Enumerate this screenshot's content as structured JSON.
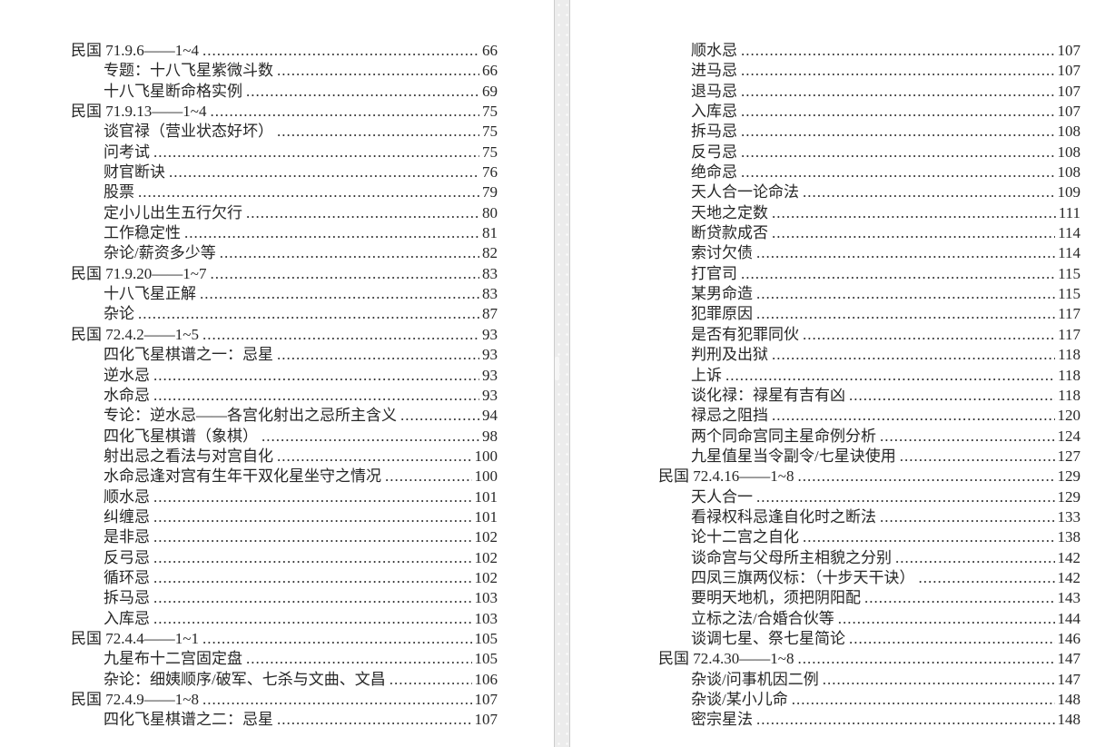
{
  "viewer": {
    "background": "#ffffff",
    "page_color": "#ffffff",
    "gap_color": "#ececec",
    "gap_border_color": "#cccccc",
    "text_color": "#262626"
  },
  "toc_left": {
    "entries": [
      {
        "label": "民国 71.9.6——1~4",
        "page": "66",
        "level": 0
      },
      {
        "label": "专题：十八飞星紫微斗数",
        "page": "66",
        "level": 1
      },
      {
        "label": "十八飞星断命格实例",
        "page": "69",
        "level": 1
      },
      {
        "label": "民国 71.9.13——1~4",
        "page": "75",
        "level": 0
      },
      {
        "label": "谈官禄（营业状态好坏）",
        "page": "75",
        "level": 1
      },
      {
        "label": "问考试",
        "page": "75",
        "level": 1
      },
      {
        "label": "财官断诀",
        "page": "76",
        "level": 1
      },
      {
        "label": "股票",
        "page": "79",
        "level": 1
      },
      {
        "label": "定小儿出生五行欠行",
        "page": "80",
        "level": 1
      },
      {
        "label": "工作稳定性",
        "page": "81",
        "level": 1
      },
      {
        "label": "杂论/薪资多少等",
        "page": "82",
        "level": 1
      },
      {
        "label": "民国 71.9.20——1~7",
        "page": "83",
        "level": 0
      },
      {
        "label": "十八飞星正解",
        "page": "83",
        "level": 1
      },
      {
        "label": "杂论",
        "page": "87",
        "level": 1
      },
      {
        "label": "民国 72.4.2——1~5",
        "page": "93",
        "level": 0
      },
      {
        "label": "四化飞星棋谱之一：忌星",
        "page": "93",
        "level": 1
      },
      {
        "label": "逆水忌",
        "page": "93",
        "level": 1
      },
      {
        "label": "水命忌",
        "page": "93",
        "level": 1
      },
      {
        "label": "专论：逆水忌——各宫化射出之忌所主含义",
        "page": "94",
        "level": 1
      },
      {
        "label": "四化飞星棋谱（象棋）",
        "page": "98",
        "level": 1
      },
      {
        "label": "射出忌之看法与对宫自化",
        "page": "100",
        "level": 1
      },
      {
        "label": "水命忌逢对宫有生年干双化星坐守之情况",
        "page": "100",
        "level": 1
      },
      {
        "label": "顺水忌",
        "page": "101",
        "level": 1
      },
      {
        "label": "纠缠忌",
        "page": "101",
        "level": 1
      },
      {
        "label": "是非忌",
        "page": "102",
        "level": 1
      },
      {
        "label": "反弓忌",
        "page": "102",
        "level": 1
      },
      {
        "label": "循环忌",
        "page": "102",
        "level": 1
      },
      {
        "label": "拆马忌",
        "page": "103",
        "level": 1
      },
      {
        "label": "入库忌",
        "page": "103",
        "level": 1
      },
      {
        "label": "民国 72.4.4——1~1",
        "page": "105",
        "level": 0
      },
      {
        "label": "九星布十二宫固定盘",
        "page": "105",
        "level": 1
      },
      {
        "label": "杂论：细姨顺序/破军、七杀与文曲、文昌",
        "page": "106",
        "level": 1
      },
      {
        "label": "民国 72.4.9——1~8",
        "page": "107",
        "level": 0
      },
      {
        "label": "四化飞星棋谱之二：忌星",
        "page": "107",
        "level": 1
      }
    ]
  },
  "toc_right": {
    "entries": [
      {
        "label": "顺水忌",
        "page": "107",
        "level": 1
      },
      {
        "label": "进马忌",
        "page": "107",
        "level": 1
      },
      {
        "label": "退马忌",
        "page": "107",
        "level": 1
      },
      {
        "label": "入库忌",
        "page": "107",
        "level": 1
      },
      {
        "label": "拆马忌",
        "page": "108",
        "level": 1
      },
      {
        "label": "反弓忌",
        "page": "108",
        "level": 1
      },
      {
        "label": "绝命忌",
        "page": "108",
        "level": 1
      },
      {
        "label": "天人合一论命法",
        "page": "109",
        "level": 1
      },
      {
        "label": "天地之定数",
        "page": "111",
        "level": 1
      },
      {
        "label": "断贷款成否",
        "page": "114",
        "level": 1
      },
      {
        "label": "索讨欠债",
        "page": "114",
        "level": 1
      },
      {
        "label": "打官司",
        "page": "115",
        "level": 1
      },
      {
        "label": "某男命造",
        "page": "115",
        "level": 1
      },
      {
        "label": "犯罪原因",
        "page": "117",
        "level": 1
      },
      {
        "label": "是否有犯罪同伙",
        "page": "117",
        "level": 1
      },
      {
        "label": "判刑及出狱",
        "page": "118",
        "level": 1
      },
      {
        "label": "上诉",
        "page": "118",
        "level": 1
      },
      {
        "label": "谈化禄：禄星有吉有凶",
        "page": "118",
        "level": 1
      },
      {
        "label": "禄忌之阻挡",
        "page": "120",
        "level": 1
      },
      {
        "label": "两个同命宫同主星命例分析",
        "page": "124",
        "level": 1
      },
      {
        "label": "九星值星当令副令/七星诀使用",
        "page": "127",
        "level": 1
      },
      {
        "label": "民国 72.4.16——1~8",
        "page": "129",
        "level": 0
      },
      {
        "label": "天人合一",
        "page": "129",
        "level": 1
      },
      {
        "label": "看禄权科忌逢自化时之断法",
        "page": "133",
        "level": 1
      },
      {
        "label": "论十二宫之自化",
        "page": "138",
        "level": 1
      },
      {
        "label": "谈命宫与父母所主相貌之分别",
        "page": "142",
        "level": 1
      },
      {
        "label": "四凤三旗两仪标：（十步天干诀）",
        "page": "142",
        "level": 1
      },
      {
        "label": "要明天地机，须把阴阳配",
        "page": "143",
        "level": 1
      },
      {
        "label": "立标之法/合婚合伙等",
        "page": "144",
        "level": 1
      },
      {
        "label": "谈调七星、祭七星简论",
        "page": "146",
        "level": 1
      },
      {
        "label": "民国 72.4.30——1~8",
        "page": "147",
        "level": 0
      },
      {
        "label": "杂谈/问事机因二例",
        "page": "147",
        "level": 1
      },
      {
        "label": "杂谈/某小儿命",
        "page": "148",
        "level": 1
      },
      {
        "label": "密宗星法",
        "page": "148",
        "level": 1
      }
    ]
  }
}
